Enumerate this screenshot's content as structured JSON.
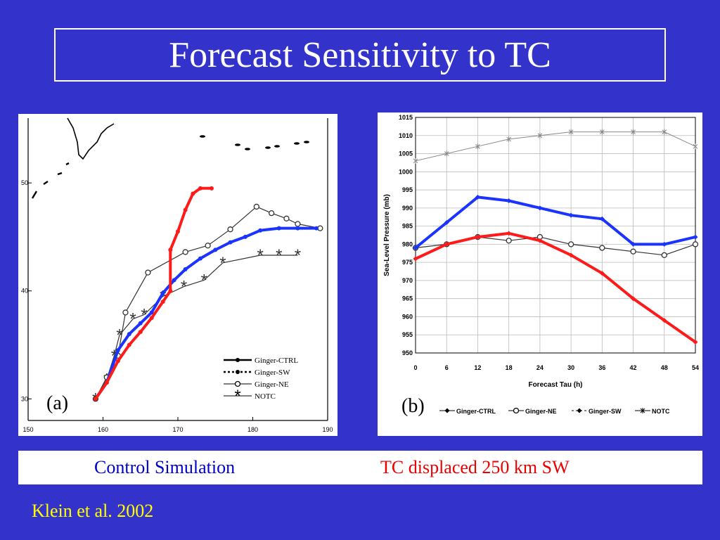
{
  "slide": {
    "title": "Forecast Sensitivity to TC",
    "caption_left": "Control Simulation",
    "caption_right": "TC displaced 250 km SW",
    "citation": "Klein et al. 2002",
    "colors": {
      "background": "#3333cc",
      "title": "#ffffff",
      "caption_left": "#0000cc",
      "caption_right": "#ee0000",
      "citation": "#ffff00",
      "blue_track": "#1a33ff",
      "red_track": "#ff1a1a"
    }
  },
  "chart_data": [
    {
      "type": "line",
      "panel_label": "(a)",
      "x_ticks": [
        150,
        160,
        170,
        180,
        190
      ],
      "y_ticks": [
        30,
        40,
        50
      ],
      "xlim": [
        150,
        190
      ],
      "ylim": [
        28,
        56
      ],
      "series": [
        {
          "name": "Ginger-CTRL",
          "color": "#1a33ff",
          "x": [
            159,
            160.5,
            162,
            163.5,
            165,
            166.5,
            168,
            169.5,
            171,
            173,
            175,
            177,
            179,
            181,
            183.5,
            186,
            188.5
          ],
          "y": [
            30,
            31.5,
            34.5,
            36,
            37,
            38,
            39.8,
            41,
            42,
            43,
            43.8,
            44.5,
            45,
            45.6,
            45.8,
            45.8,
            45.8
          ]
        },
        {
          "name": "Ginger-SW",
          "color": "#ff1a1a",
          "x": [
            159,
            160.5,
            162,
            163.5,
            165,
            166.5,
            168,
            169,
            169,
            170,
            171,
            172,
            173,
            174.5
          ],
          "y": [
            30,
            31.5,
            33.5,
            35,
            36.2,
            37.5,
            39,
            40,
            43.8,
            45.5,
            47.5,
            49,
            49.5,
            49.5
          ]
        },
        {
          "name": "Ginger-NE",
          "color": "#333333",
          "x": [
            159,
            160.5,
            162,
            163,
            166,
            171,
            174,
            177,
            180.5,
            182.5,
            184.5,
            186,
            189
          ],
          "y": [
            30,
            32,
            34,
            38,
            41.7,
            43.6,
            44.2,
            45.7,
            47.8,
            47.2,
            46.7,
            46.2,
            45.8
          ]
        },
        {
          "name": "NOTC",
          "color": "#333333",
          "x": [
            159,
            160.5,
            161.5,
            162.2,
            164,
            165.5,
            168,
            170.8,
            173.5,
            176,
            181,
            183.5,
            186
          ],
          "y": [
            30,
            31.8,
            34,
            35.9,
            37.4,
            37.8,
            39.5,
            40.4,
            41,
            42.6,
            43.3,
            43.3,
            43.3
          ]
        }
      ],
      "legend": [
        "Ginger-CTRL",
        "Ginger-SW",
        "Ginger-NE",
        "NOTC"
      ],
      "legend_position": "bottom-right"
    },
    {
      "type": "line",
      "panel_label": "(b)",
      "xlabel": "Forecast Tau (h)",
      "ylabel": "Sea-Level Pressure (mb)",
      "x": [
        0,
        6,
        12,
        18,
        24,
        30,
        36,
        42,
        48,
        54
      ],
      "xlim": [
        0,
        54
      ],
      "ylim": [
        950,
        1015
      ],
      "y_ticks": [
        950,
        955,
        960,
        965,
        970,
        975,
        980,
        985,
        990,
        995,
        1000,
        1005,
        1010,
        1015
      ],
      "grid": true,
      "series": [
        {
          "name": "Ginger-CTRL",
          "color": "#1a33ff",
          "values": [
            979,
            986,
            993,
            992,
            990,
            988,
            987,
            980,
            980,
            982
          ]
        },
        {
          "name": "Ginger-SW",
          "color": "#ff1a1a",
          "values": [
            976,
            980,
            982,
            983,
            981,
            977,
            972,
            965,
            959,
            953
          ]
        },
        {
          "name": "Ginger-NE",
          "color": "#333333",
          "values": [
            979,
            980,
            982,
            981,
            982,
            980,
            979,
            978,
            977,
            980
          ]
        },
        {
          "name": "NOTC",
          "color": "#888888",
          "values": [
            1003,
            1005,
            1007,
            1009,
            1010,
            1011,
            1011,
            1011,
            1011,
            1007
          ]
        }
      ],
      "legend": [
        "Ginger-CTRL",
        "Ginger-NE",
        "Ginger-SW",
        "NOTC"
      ],
      "legend_position": "bottom"
    }
  ]
}
